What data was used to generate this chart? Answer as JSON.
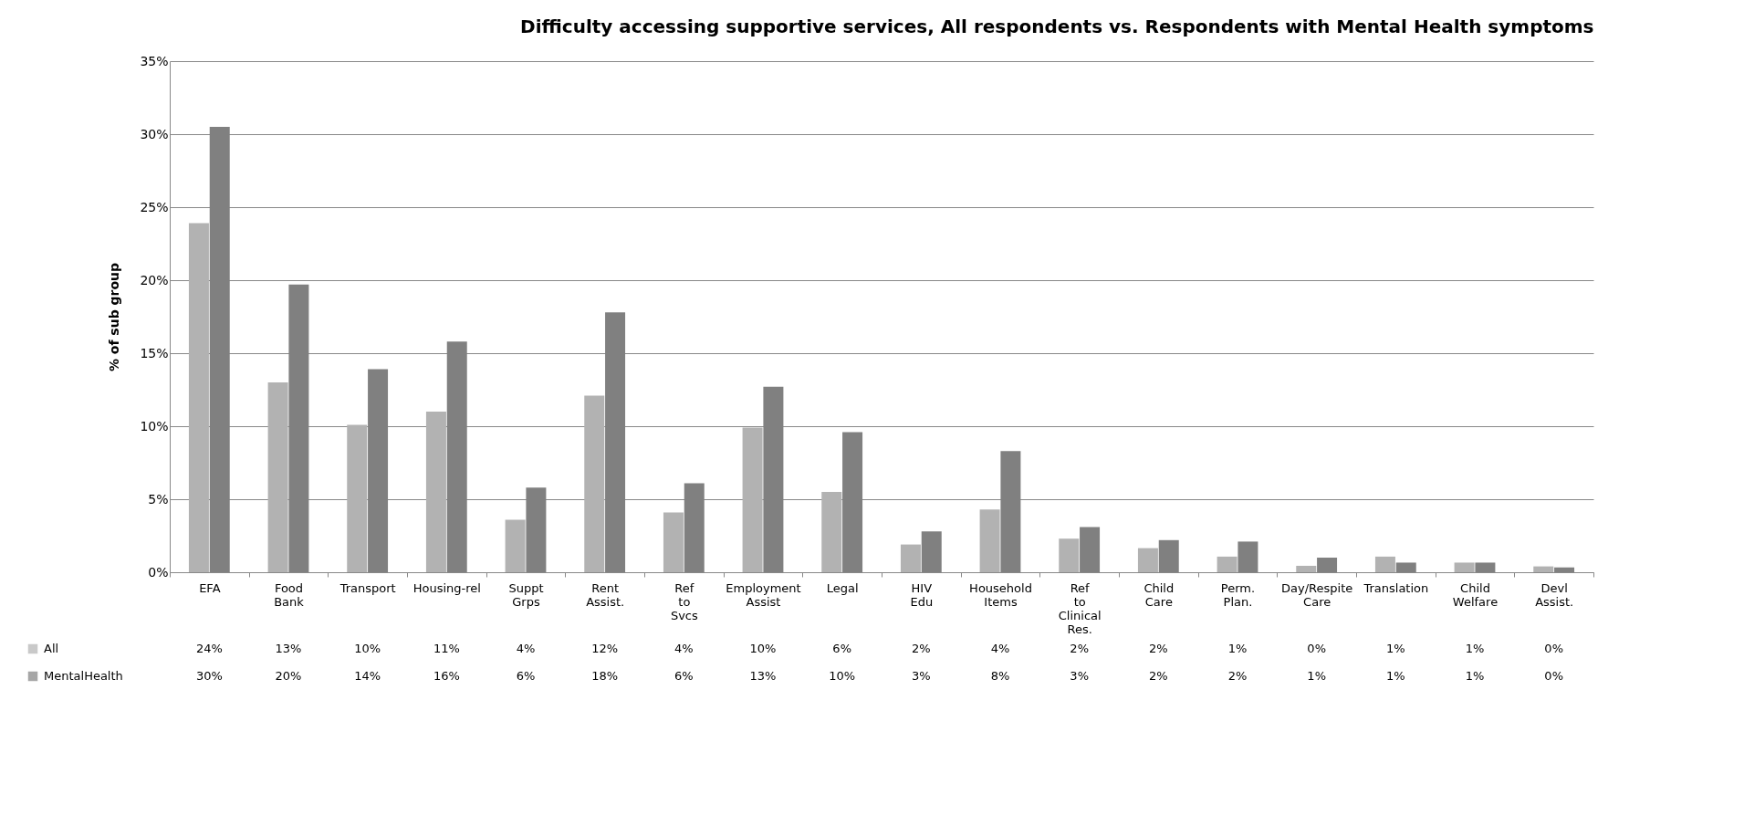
{
  "chart_data": {
    "type": "bar",
    "title": "Difficulty accessing supportive services, All respondents vs. Respondents with Mental Health symptoms",
    "ylabel": "% of sub group",
    "categories": [
      "EFA",
      "Food Bank",
      "Transport",
      "Housing-rel",
      "Suppt Grps",
      "Rent Assist.",
      "Ref to Svcs",
      "Employment Assist",
      "Legal",
      "HIV Edu",
      "Household Items",
      "Ref to Clinical Res.",
      "Child Care",
      "Perm. Plan.",
      "Day/Respite Care",
      "Translation",
      "Child Welfare",
      "Devl Assist."
    ],
    "series": [
      {
        "name": "All",
        "color": "#b2b2b2",
        "values": [
          23.9,
          13.0,
          10.1,
          11.0,
          3.6,
          12.1,
          4.1,
          9.9,
          5.5,
          1.9,
          4.3,
          2.3,
          1.65,
          1.07,
          0.44,
          1.07,
          0.66,
          0.4
        ],
        "value_labels": [
          "24%",
          "13%",
          "10%",
          "11%",
          "4%",
          "12%",
          "4%",
          "10%",
          "6%",
          "2%",
          "4%",
          "2%",
          "2%",
          "1%",
          "0%",
          "1%",
          "1%",
          "0%"
        ]
      },
      {
        "name": "MentalHealth",
        "color": "#808080",
        "values": [
          30.5,
          19.7,
          13.9,
          15.8,
          5.8,
          17.8,
          6.1,
          12.7,
          9.6,
          2.8,
          8.3,
          3.1,
          2.2,
          2.1,
          1.0,
          0.66,
          0.66,
          0.33
        ],
        "value_labels": [
          "30%",
          "20%",
          "14%",
          "16%",
          "6%",
          "18%",
          "6%",
          "13%",
          "10%",
          "3%",
          "8%",
          "3%",
          "2%",
          "2%",
          "1%",
          "1%",
          "1%",
          "0%"
        ]
      }
    ],
    "ylim": [
      0,
      35
    ],
    "yticks": [
      {
        "value": 0,
        "label": "0%"
      },
      {
        "value": 5,
        "label": "5%"
      },
      {
        "value": 10,
        "label": "10%"
      },
      {
        "value": 15,
        "label": "15%"
      },
      {
        "value": 20,
        "label": "20%"
      },
      {
        "value": 25,
        "label": "25%"
      },
      {
        "value": 30,
        "label": "30%"
      },
      {
        "value": 35,
        "label": "35%"
      }
    ],
    "grid": "y",
    "legend": "bottom"
  }
}
